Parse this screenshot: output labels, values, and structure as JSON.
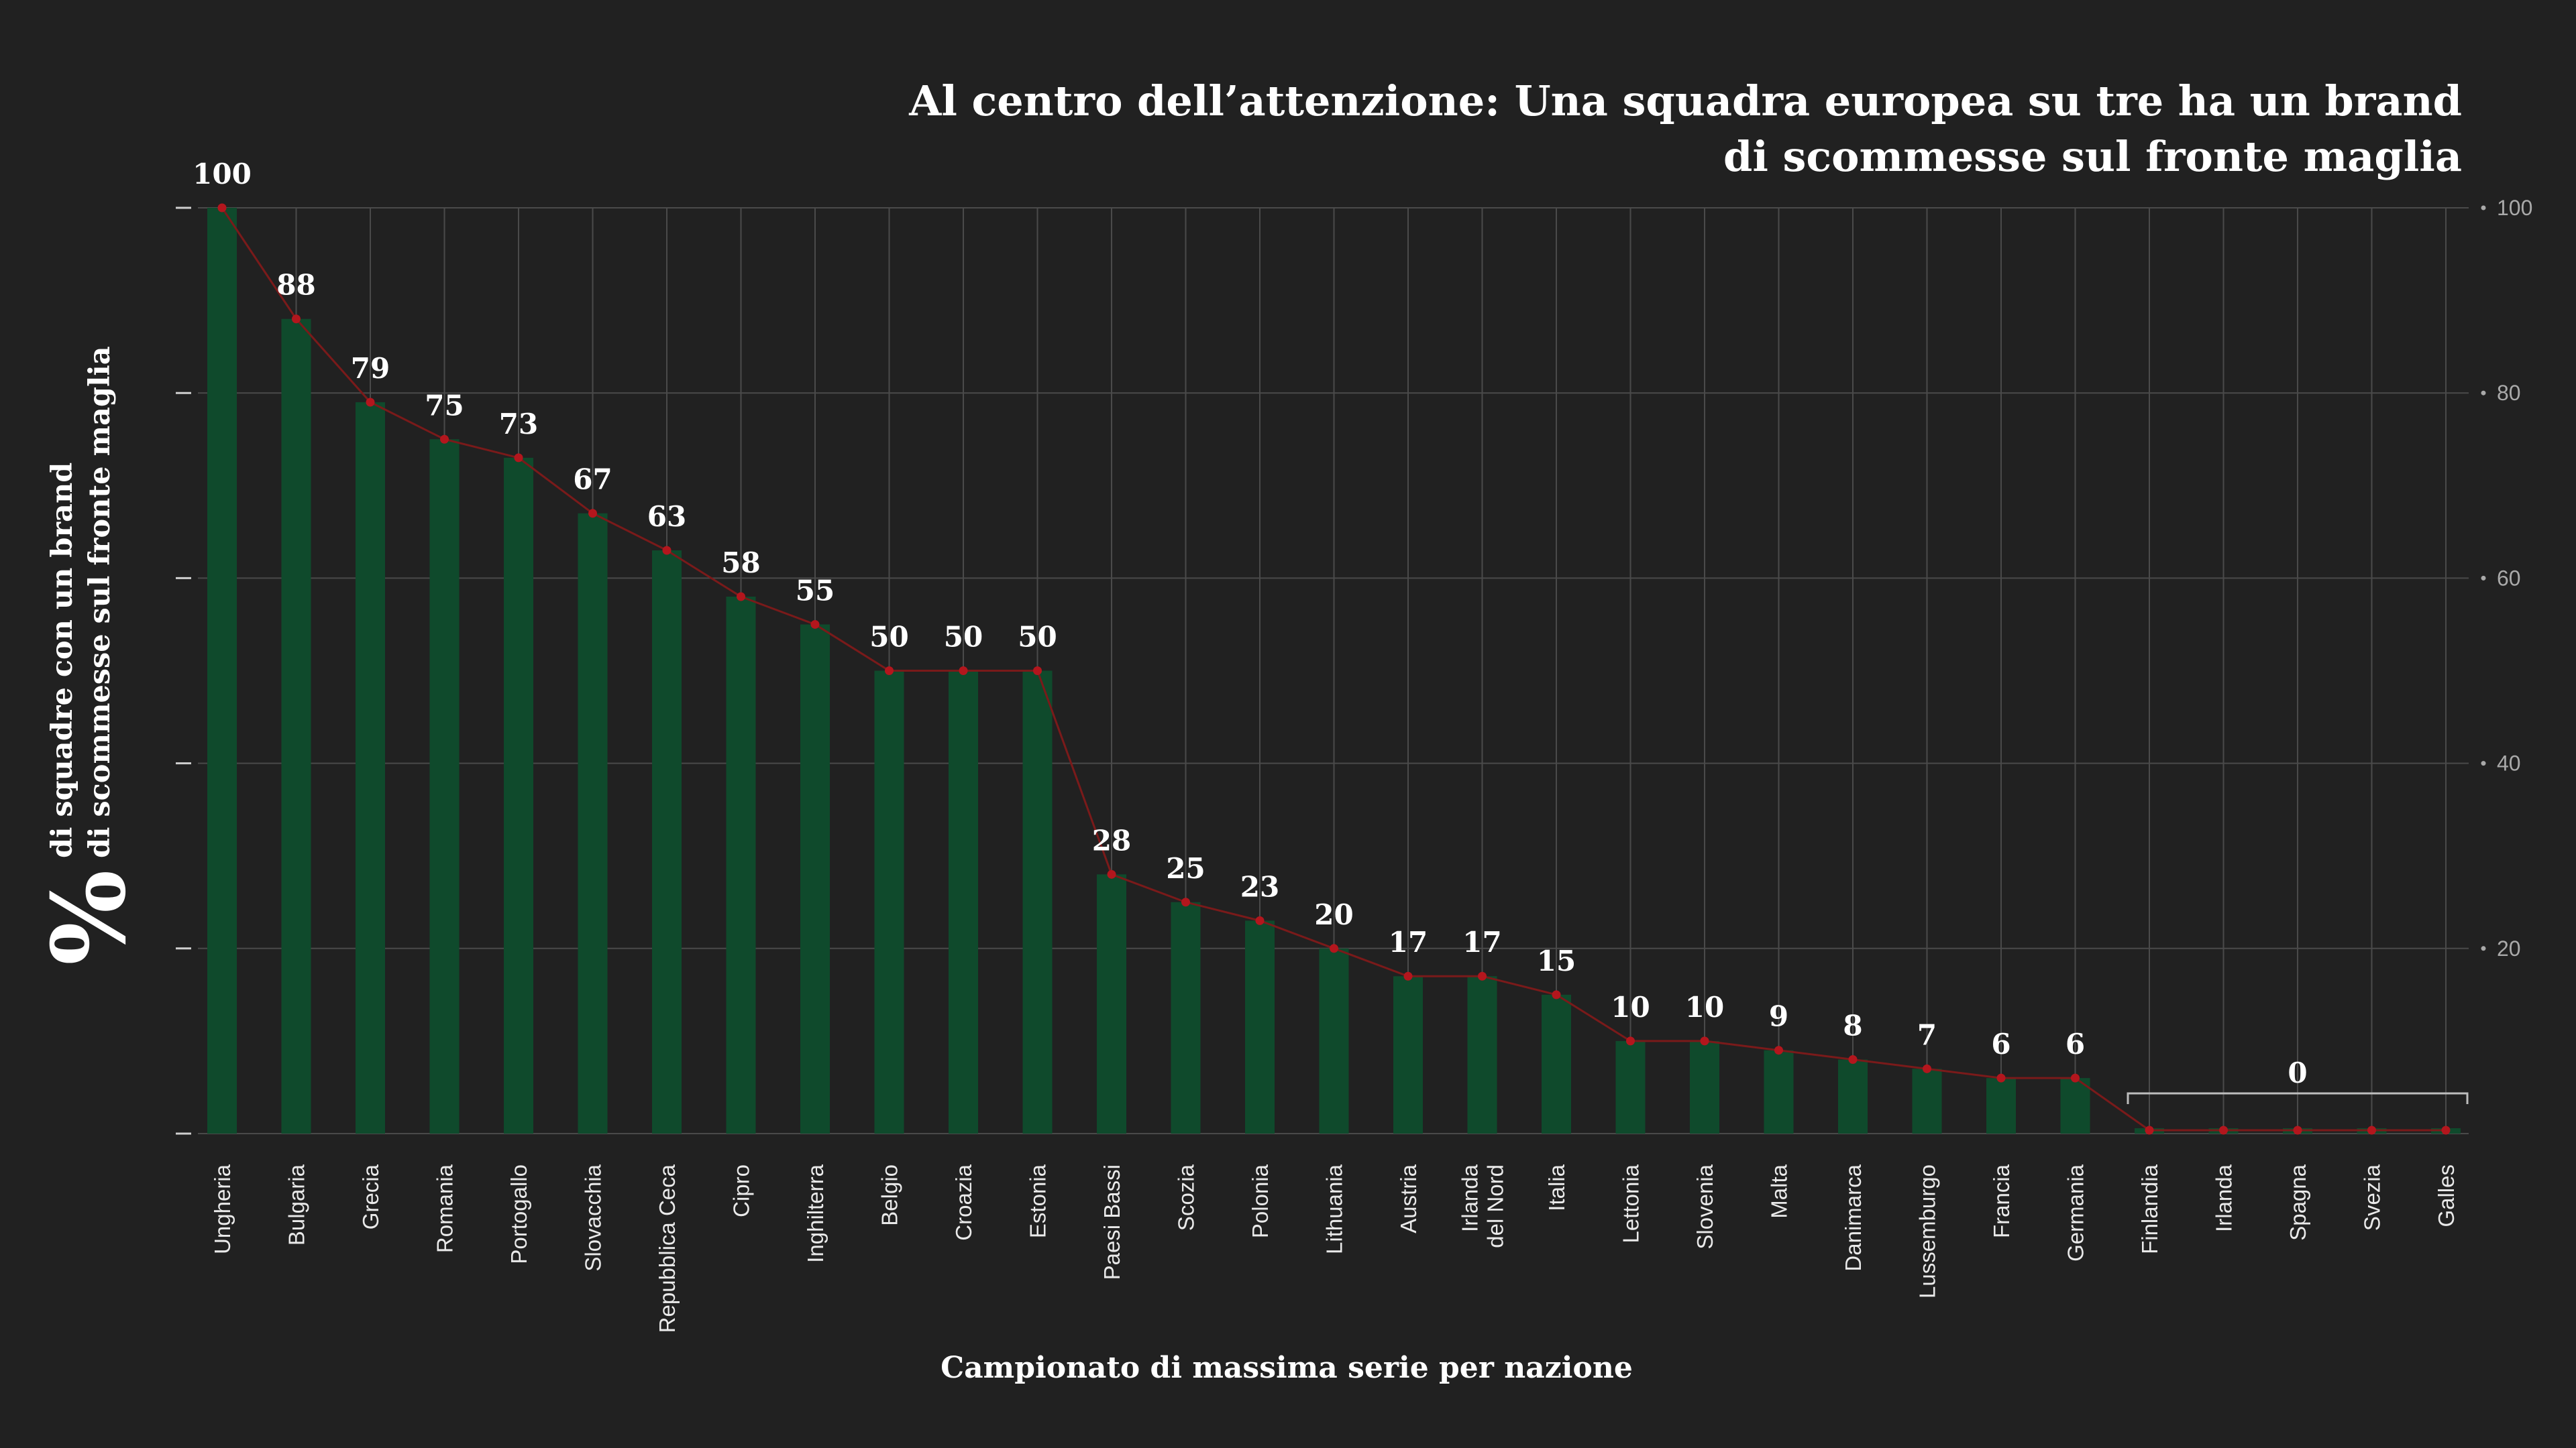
{
  "chart_data": {
    "type": "bar",
    "title_lines": [
      "Al centro dell’attenzione: Una squadra europea su tre ha un brand",
      "di scommesse sul fronte maglia"
    ],
    "ylabel_symbol": "%",
    "ylabel_lines": [
      "di squadre con un brand",
      "di scommesse sul fronte maglia"
    ],
    "xlabel": "Campionato di massima serie per nazione",
    "categories": [
      [
        "Ungheria"
      ],
      [
        "Bulgaria"
      ],
      [
        "Grecia"
      ],
      [
        "Romania"
      ],
      [
        "Portogallo"
      ],
      [
        "Slovacchia"
      ],
      [
        "Repubblica Ceca"
      ],
      [
        "Cipro"
      ],
      [
        "Inghilterra"
      ],
      [
        "Belgio"
      ],
      [
        "Croazia"
      ],
      [
        "Estonia"
      ],
      [
        "Paesi Bassi"
      ],
      [
        "Scozia"
      ],
      [
        "Polonia"
      ],
      [
        "Lithuania"
      ],
      [
        "Austria"
      ],
      [
        "Irlanda",
        "del Nord"
      ],
      [
        "Italia"
      ],
      [
        "Lettonia"
      ],
      [
        "Slovenia"
      ],
      [
        "Malta"
      ],
      [
        "Danimarca"
      ],
      [
        "Lussemburgo"
      ],
      [
        "Francia"
      ],
      [
        "Germania"
      ],
      [
        "Finlandia"
      ],
      [
        "Irlanda"
      ],
      [
        "Spagna"
      ],
      [
        "Svezia"
      ],
      [
        "Galles"
      ]
    ],
    "values": [
      100,
      88,
      79,
      75,
      73,
      67,
      63,
      58,
      55,
      50,
      50,
      50,
      28,
      25,
      23,
      20,
      17,
      17,
      15,
      10,
      10,
      9,
      8,
      7,
      6,
      6,
      0,
      0,
      0,
      0,
      0
    ],
    "value_labels": [
      "100",
      "88",
      "79",
      "75",
      "73",
      "67",
      "63",
      "58",
      "55",
      "50",
      "50",
      "50",
      "28",
      "25",
      "23",
      "20",
      "17",
      "17",
      "15",
      "10",
      "10",
      "9",
      "8",
      "7",
      "6",
      "6",
      "",
      "",
      "",
      "",
      ""
    ],
    "zero_group_label": "0",
    "ylim": [
      0,
      100
    ],
    "right_ticks": [
      "20",
      "40",
      "60",
      "80",
      "100"
    ],
    "right_tick_values": [
      20,
      40,
      60,
      80,
      100
    ],
    "grid": true,
    "colors": {
      "background": "#212121",
      "bar": "#0f4a2c",
      "line": "#7a1a1a",
      "marker": "#b3161d",
      "grid": "#4a4a4a",
      "text": "#ffffff"
    }
  }
}
